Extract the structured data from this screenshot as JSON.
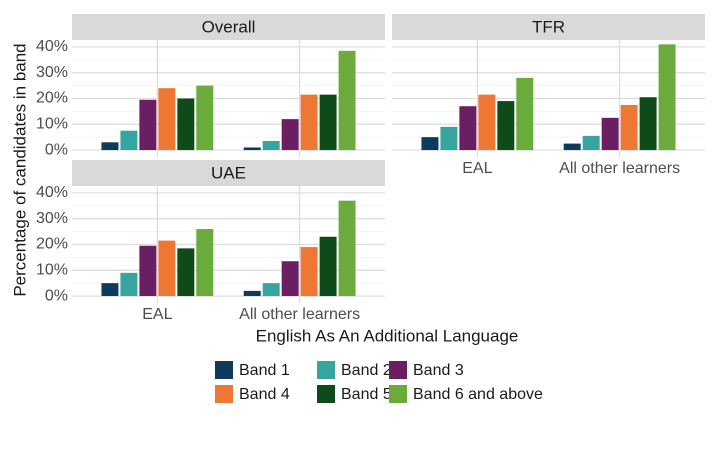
{
  "chart_data": [
    {
      "type": "bar",
      "title": "Overall",
      "xlabel": "English As An Additional Language",
      "ylabel": "Percentage of candidates in band",
      "legend": "bottom",
      "grid": true,
      "categories": [
        null,
        null
      ],
      "series": [
        {
          "name": "Band 1",
          "color": "#0e3a5c",
          "values": [
            3,
            1
          ]
        },
        {
          "name": "Band 2",
          "color": "#36a5a0",
          "values": [
            7.5,
            3.5
          ]
        },
        {
          "name": "Band 3",
          "color": "#6a1f63",
          "values": [
            19.5,
            12
          ]
        },
        {
          "name": "Band 4",
          "color": "#ee7733",
          "values": [
            24,
            21.5
          ]
        },
        {
          "name": "Band 5",
          "color": "#0f4a1b",
          "values": [
            20,
            21.5
          ]
        },
        {
          "name": "Band 6 and above",
          "color": "#6aab3c",
          "values": [
            25,
            38.5
          ]
        }
      ],
      "ylim": [
        -2.7,
        42.7
      ],
      "yticks": [
        {
          "value": 0,
          "label": "0%"
        },
        {
          "value": 10,
          "label": "10%"
        },
        {
          "value": 20,
          "label": "20%"
        },
        {
          "value": 30,
          "label": "30%"
        },
        {
          "value": 40,
          "label": "40%"
        }
      ]
    },
    {
      "type": "bar",
      "title": "TFR",
      "grid": true,
      "categories": [
        "EAL",
        "All other learners"
      ],
      "series": [
        {
          "color": "#0e3a5c",
          "values": [
            5,
            2.5
          ]
        },
        {
          "color": "#36a5a0",
          "values": [
            9,
            5.5
          ]
        },
        {
          "color": "#6a1f63",
          "values": [
            17,
            12.5
          ]
        },
        {
          "color": "#ee7733",
          "values": [
            21.5,
            17.5
          ]
        },
        {
          "color": "#0f4a1b",
          "values": [
            19,
            20.5
          ]
        },
        {
          "color": "#6aab3c",
          "values": [
            28,
            41
          ]
        }
      ],
      "ylim": [
        -2.7,
        42.7
      ],
      "yticks": [
        0,
        10,
        20,
        30,
        40
      ]
    },
    {
      "type": "bar",
      "title": "UAE",
      "grid": true,
      "categories": [
        "EAL",
        "All other learners"
      ],
      "series": [
        {
          "color": "#0e3a5c",
          "values": [
            5,
            2
          ]
        },
        {
          "color": "#36a5a0",
          "values": [
            9,
            5
          ]
        },
        {
          "color": "#6a1f63",
          "values": [
            19.5,
            13.5
          ]
        },
        {
          "color": "#ee7733",
          "values": [
            21.5,
            19
          ]
        },
        {
          "color": "#0f4a1b",
          "values": [
            18.5,
            23
          ]
        },
        {
          "color": "#6aab3c",
          "values": [
            26,
            37
          ]
        }
      ],
      "ylim": [
        -2.7,
        42.7
      ],
      "yticks": [
        {
          "value": 0,
          "label": "0%"
        },
        {
          "value": 10,
          "label": "10%"
        },
        {
          "value": 20,
          "label": "20%"
        },
        {
          "value": 30,
          "label": "30%"
        },
        {
          "value": 40,
          "label": "40%"
        }
      ]
    }
  ]
}
